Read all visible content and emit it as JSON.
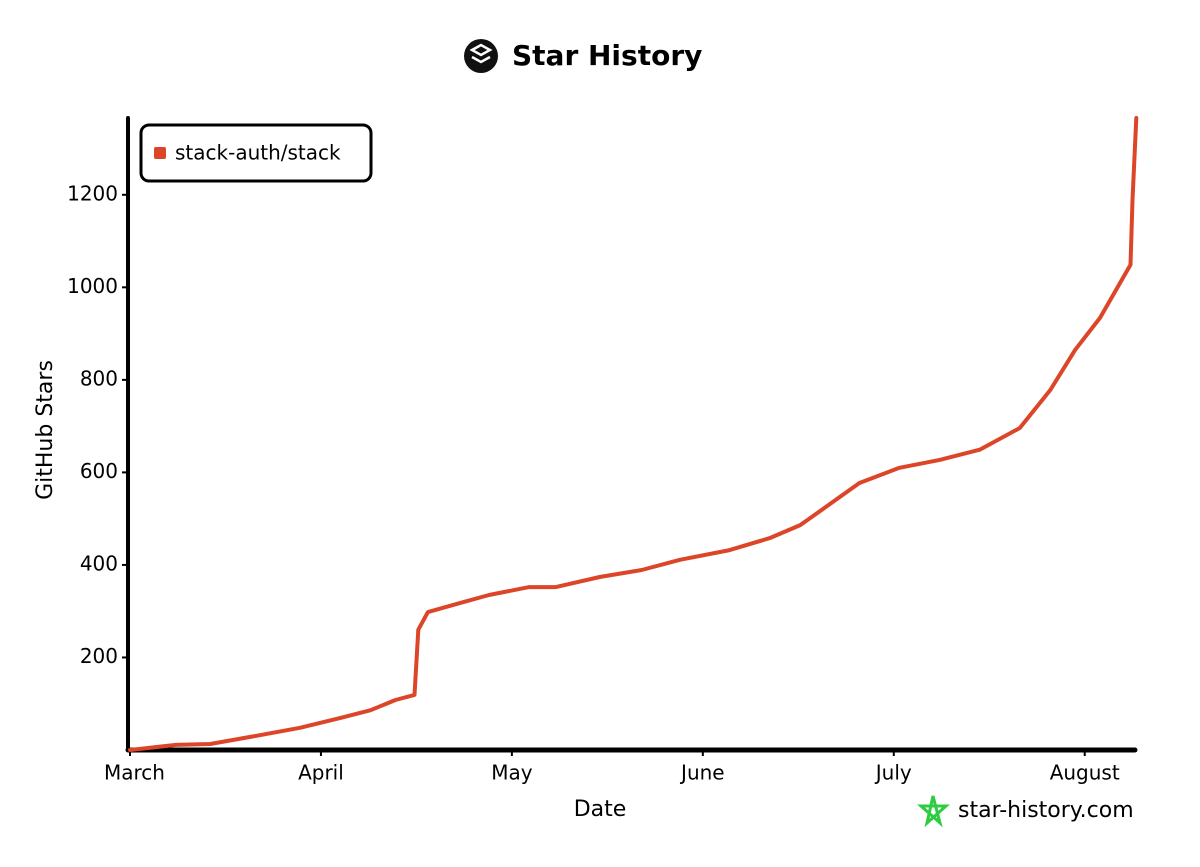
{
  "chart_data": {
    "type": "line",
    "title": "Star History",
    "x_label": "Date",
    "y_label": "GitHub Stars",
    "watermark": "star-history.com",
    "legend": "top-left",
    "xlim": [
      0,
      5.3
    ],
    "xticks": [
      {
        "value": 0,
        "label": "March"
      },
      {
        "value": 1,
        "label": "April"
      },
      {
        "value": 2,
        "label": "May"
      },
      {
        "value": 3,
        "label": "June"
      },
      {
        "value": 4,
        "label": "July"
      },
      {
        "value": 5,
        "label": "August"
      }
    ],
    "ylim": [
      0,
      1366
    ],
    "yticks": [
      200,
      400,
      600,
      800,
      1000,
      1200
    ],
    "grid": false,
    "x": [
      0,
      0.24,
      0.42,
      0.68,
      0.89,
      1.1,
      1.26,
      1.39,
      1.49,
      1.51,
      1.56,
      1.73,
      1.88,
      2.09,
      2.23,
      2.46,
      2.68,
      2.88,
      3.14,
      3.35,
      3.51,
      3.66,
      3.82,
      4.03,
      4.24,
      4.45,
      4.66,
      4.82,
      4.95,
      5.08,
      5.24,
      5.25,
      5.27
    ],
    "series": [
      {
        "name": "stack-auth/stack",
        "color": "#dd4528",
        "values": [
          0,
          11,
          13,
          32,
          48,
          69,
          86,
          108,
          119,
          260,
          298,
          318,
          335,
          352,
          352,
          374,
          389,
          411,
          432,
          458,
          486,
          530,
          577,
          610,
          627,
          649,
          696,
          778,
          865,
          934,
          1049,
          1189,
          1366
        ]
      }
    ]
  }
}
